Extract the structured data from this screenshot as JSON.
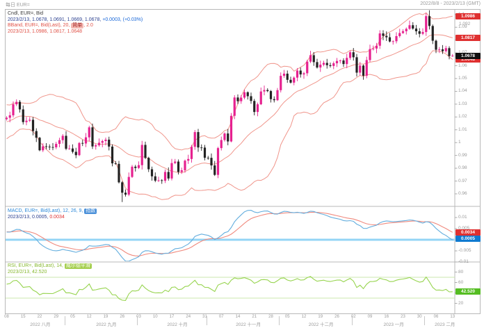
{
  "header": {
    "left": "每日 EUR=",
    "right": "2022/8/8 - 2023/2/13 (GMT)"
  },
  "price_pane": {
    "legend": {
      "line1": "Cndl, EUR=, Bid",
      "line2_values": "2023/2/13, 1.0678, 1.0691, 1.0669, 1.0678, ",
      "line2_change": "+0.0003, (+0.03%)",
      "bband_pre": "BBand, EUR=, Bid(Last), 20, ",
      "bband_chip": "简单",
      "bband_post": ", 2.0",
      "bband_values": "2023/2/13, 1.0986, 1.0817, 1.0648"
    },
    "ticks": [
      {
        "v": 1.1,
        "label": "1.1"
      },
      {
        "v": 1.09,
        "label": "1.09"
      },
      {
        "v": 1.08,
        "label": "1.08"
      },
      {
        "v": 1.07,
        "label": "1.07"
      },
      {
        "v": 1.06,
        "label": "1.06"
      },
      {
        "v": 1.05,
        "label": "1.05"
      },
      {
        "v": 1.04,
        "label": "1.04"
      },
      {
        "v": 1.03,
        "label": "1.03"
      },
      {
        "v": 1.02,
        "label": "1.02"
      },
      {
        "v": 1.01,
        "label": "1.01"
      },
      {
        "v": 1.0,
        "label": "1"
      },
      {
        "v": 0.99,
        "label": "0.99"
      },
      {
        "v": 0.98,
        "label": "0.98"
      },
      {
        "v": 0.97,
        "label": "0.97"
      },
      {
        "v": 0.96,
        "label": "0.96"
      }
    ],
    "badges": [
      {
        "label": "1.0986",
        "v": 1.0986,
        "color": "red"
      },
      {
        "label": "1.0817",
        "v": 1.0817,
        "color": "red"
      },
      {
        "label": "1.0648",
        "v": 1.0648,
        "color": "red"
      },
      {
        "label": "1.0678",
        "v": 1.0678,
        "color": "black"
      }
    ],
    "gray_marker": {
      "label": "1.092",
      "v": 1.0925
    }
  },
  "macd_pane": {
    "legend": {
      "pre": "MACD, EUR=, Bid(Last), 12, 26, 9, ",
      "chip": "指数",
      "line2_values": "2023/2/13, 0.0005, ",
      "line2_signal": "0.0034"
    },
    "ticks": [
      {
        "v": 0.01,
        "label": "0.01"
      },
      {
        "v": 0.005,
        "label": "0.005"
      },
      {
        "v": -0.005,
        "label": "-0.005"
      },
      {
        "v": -0.01,
        "label": "-0.01"
      }
    ],
    "badges": [
      {
        "label": "0.0034",
        "v": 0.0034,
        "color": "red"
      },
      {
        "label": "0.0005",
        "v": 0.0005,
        "color": "blue"
      }
    ],
    "params": {
      "fast": 12,
      "slow": 26,
      "signal": 9
    }
  },
  "rsi_pane": {
    "legend": {
      "pre": "RSI, EUR=, Bid(Last), 14, ",
      "chip": "威尔德平滑",
      "line2": "2023/2/13, 42.520"
    },
    "ticks": [
      {
        "v": 80,
        "label": "80"
      },
      {
        "v": 60,
        "label": "60"
      },
      {
        "v": 40,
        "label": "40"
      },
      {
        "v": 20,
        "label": "20"
      }
    ],
    "badge": {
      "label": "42.520",
      "v": 42.52
    },
    "ref_lines": [
      70,
      30
    ],
    "period": 14
  },
  "x_axis": {
    "day_ticks": [
      "08",
      "15",
      "22",
      "29",
      "05",
      "12",
      "19",
      "26",
      "03",
      "10",
      "17",
      "24",
      "31",
      "07",
      "14",
      "21",
      "28",
      "05",
      "12",
      "19",
      "26",
      "02",
      "09",
      "16",
      "23",
      "30",
      "06",
      "13"
    ],
    "tick_step": 5,
    "months": [
      {
        "label": "2022 八月",
        "start": 0,
        "end": 17
      },
      {
        "label": "2022 九月",
        "start": 18,
        "end": 39
      },
      {
        "label": "2022 十月",
        "start": 40,
        "end": 60
      },
      {
        "label": "2022 十一月",
        "start": 61,
        "end": 82
      },
      {
        "label": "2022 十二月",
        "start": 83,
        "end": 104
      },
      {
        "label": "2023 一月",
        "start": 105,
        "end": 126
      },
      {
        "label": "2023 二月",
        "start": 127,
        "end": 135
      }
    ]
  },
  "chart_data": {
    "type": "candlestick",
    "instrument": "EUR=",
    "interval": "daily",
    "ylim": [
      0.951,
      1.104
    ],
    "bollinger": {
      "period": 20,
      "method": "简单",
      "width": 2.0
    },
    "closes_pre": [
      1.0043,
      1.004,
      1.0061,
      1.0021,
      1.0084,
      1.0141,
      1.0227,
      1.0181,
      1.0199,
      1.0213,
      1.0216,
      1.0118,
      1.0197,
      1.0122,
      1.0219,
      1.0257,
      1.0168,
      1.016,
      1.0246,
      1.0183
    ],
    "closes": [
      1.0194,
      1.0213,
      1.0299,
      1.0318,
      1.0259,
      1.016,
      1.0171,
      1.0178,
      1.009,
      1.0038,
      0.994,
      0.9971,
      0.9968,
      0.9965,
      0.9963,
      0.999,
      1.0019,
      1.0053,
      0.9952,
      0.9954,
      0.9928,
      0.9902,
      0.9997,
      0.9993,
      1.0041,
      1.0119,
      0.997,
      0.9979,
      0.9999,
      1.0012,
      1.0023,
      0.9969,
      0.9838,
      0.9834,
      0.969,
      0.9609,
      0.9594,
      0.9732,
      0.9812,
      0.9802,
      0.9824,
      0.9982,
      0.9881,
      0.9792,
      0.9737,
      0.9703,
      0.9706,
      0.9702,
      0.9771,
      0.972,
      0.984,
      0.9852,
      0.9771,
      0.9784,
      0.9859,
      0.9872,
      0.9967,
      1.0082,
      0.9962,
      0.9961,
      0.9882,
      0.9881,
      0.9822,
      0.9748,
      0.9957,
      1.002,
      1.0071,
      1.0009,
      1.0209,
      1.0352,
      1.0323,
      1.0351,
      1.0393,
      1.0362,
      1.0325,
      1.0239,
      1.0299,
      1.0399,
      1.041,
      1.0402,
      1.0339,
      1.0331,
      1.0409,
      1.0521,
      1.0538,
      1.049,
      1.0468,
      1.0507,
      1.0562,
      1.0532,
      1.0541,
      1.0632,
      1.0682,
      1.0628,
      1.0586,
      1.0608,
      1.0622,
      1.0604,
      1.0598,
      1.0619,
      1.0637,
      1.0641,
      1.0613,
      1.0661,
      1.0705,
      1.0666,
      1.0546,
      1.0601,
      1.0522,
      1.0644,
      1.073,
      1.0734,
      1.0756,
      1.0852,
      1.0833,
      1.0822,
      1.0789,
      1.0791,
      1.0831,
      1.0855,
      1.0869,
      1.0888,
      1.0916,
      1.089,
      1.0869,
      1.0849,
      1.0863,
      1.0987,
      1.091,
      1.0795,
      1.0725,
      1.0728,
      1.0713,
      1.0737,
      1.0675,
      1.0678
    ],
    "wick_overrides": {
      "35": {
        "l": 0.9536
      },
      "128": {
        "h": 1.1033
      },
      "135": {
        "h": 1.0691,
        "l": 1.0669
      }
    }
  },
  "colors": {
    "up": "#e6218f",
    "down": "#222222",
    "bband": "#f0958b",
    "macd": "#64aede",
    "macd_signal": "#f08a7e",
    "macd_zero": "#93d4f5",
    "rsi": "#97d44f",
    "rsi_ref": "#cbe7ad",
    "badge_red": "#df3030",
    "badge_blue": "#0f7ad0",
    "badge_black": "#101010",
    "badge_green": "#55bd22",
    "legend_values": "#2a3f8f",
    "legend_change": "#1565d8",
    "bband_red": "#e05045",
    "macd_blue": "#2b88d8",
    "rsi_green": "#86b82e",
    "axis_text": "#9a9a9a",
    "frame": "#b8b8b8"
  }
}
